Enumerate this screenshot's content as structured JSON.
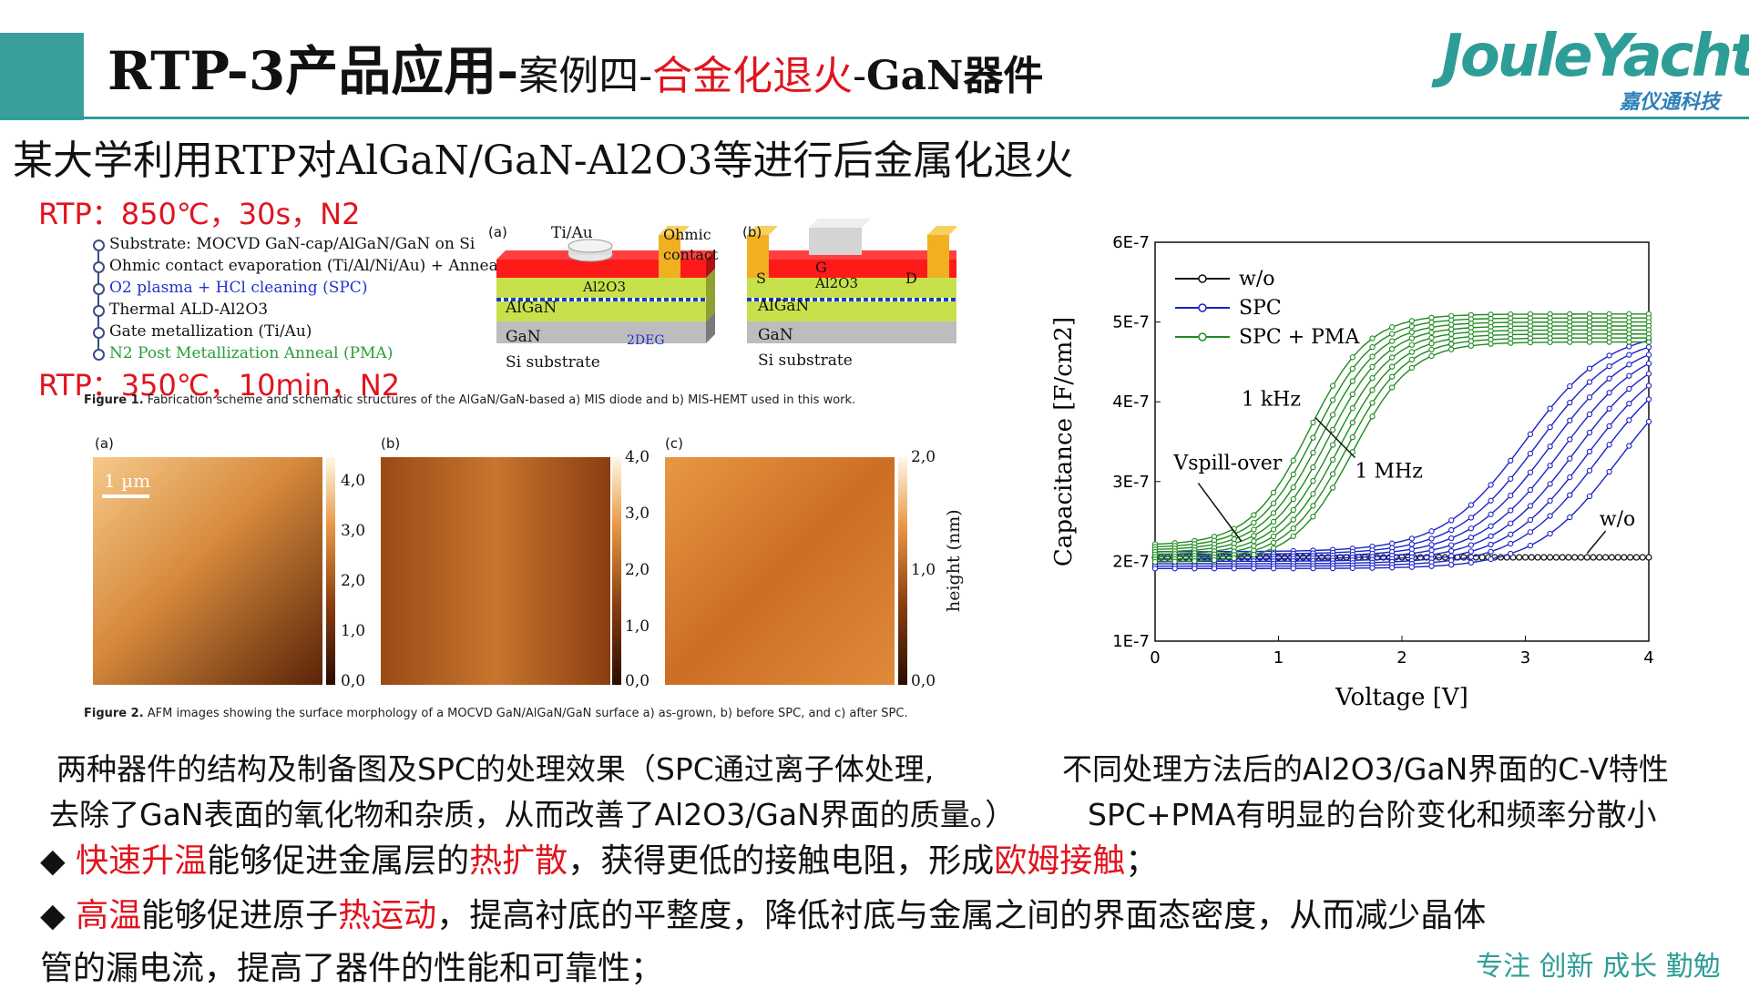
{
  "header": {
    "title_main": "RTP-3产品应用-",
    "title_case": "案例四-",
    "title_highlight": "合金化退火",
    "title_dash": "-",
    "title_device": "GaN器件",
    "logo_text": "JouleYacht",
    "logo_sub": "嘉仪通科技"
  },
  "subtitle": "某大学利用RTP对AlGaN/GaN-Al2O3等进行后金属化退火",
  "rtp1": "RTP：850℃，30s，N2",
  "rtp2": "RTP：350℃，10min，N2",
  "process_steps": [
    "Substrate: MOCVD GaN-cap/AlGaN/GaN on Si",
    "Ohmic contact evaporation (Ti/Al/Ni/Au) + Anneal",
    "O2 plasma + HCl cleaning (SPC)",
    "Thermal ALD-Al2O3",
    "Gate metallization (Ti/Au)",
    "N2 Post Metallization Anneal (PMA)"
  ],
  "fig1": {
    "label_a": "(a)",
    "label_b": "(b)",
    "tiau": "Ti/Au",
    "ohmic": "Ohmic",
    "contact": "contact",
    "al2o3": "Al2O3",
    "algan": "AlGaN",
    "gan": "GaN",
    "deg": "2DEG",
    "si": "Si substrate",
    "s": "S",
    "d": "D",
    "g": "G",
    "caption_bold": "Figure 1.",
    "caption": "Fabrication scheme and schematic structures of the AlGaN/GaN-based a) MIS diode and b) MIS-HEMT used in this work."
  },
  "fig2": {
    "label_a": "(a)",
    "label_b": "(b)",
    "label_c": "(c)",
    "scale": "1 µm",
    "cb_a": [
      "4,0",
      "3,0",
      "2,0",
      "1,0",
      "0,0"
    ],
    "cb_b": [
      "4,0",
      "3,0",
      "2,0",
      "1,0",
      "0,0"
    ],
    "cb_c": [
      "2,0",
      "1,0",
      "0,0"
    ],
    "height_label": "height (nm)",
    "caption_bold": "Figure 2.",
    "caption": "AFM images showing the surface morphology of a MOCVD GaN/AlGaN/GaN surface a) as-grown, b) before SPC, and c) after SPC."
  },
  "left_desc": [
    "两种器件的结构及制备图及SPC的处理效果（SPC通过离子体处理,",
    "去除了GaN表面的氧化物和杂质，从而改善了Al2O3/GaN界面的质量。）"
  ],
  "right_desc": [
    "不同处理方法后的Al2O3/GaN界面的C-V特性",
    "SPC+PMA有明显的台阶变化和频率分散小"
  ],
  "bullets": [
    {
      "pre": "",
      "hl1": "快速升温",
      "mid1": "能够促进金属层的",
      "hl2": "热扩散",
      "mid2": "，获得更低的接触电阻，形成",
      "hl3": "欧姆接触",
      "post": "；"
    },
    {
      "pre": "",
      "hl1": "高温",
      "mid1": "能够促进原子",
      "hl2": "热运动",
      "mid2": "，提高衬底的平整度，降低衬底与金属之间的界面态密度，从而减少晶体",
      "hl3": "",
      "post": ""
    }
  ],
  "bullet_cont": "管的漏电流，提高了器件的性能和可靠性；",
  "slogan": "专注 创新 成长 勤勉",
  "chart_data": {
    "type": "line",
    "xlabel": "Voltage [V]",
    "ylabel": "Capacitance [F/cm2]",
    "xlim": [
      0,
      4
    ],
    "ylim": [
      1e-07,
      6e-07
    ],
    "x_ticks": [
      "0",
      "1",
      "2",
      "3",
      "4"
    ],
    "y_ticks": [
      "1E-7",
      "2E-7",
      "3E-7",
      "4E-7",
      "5E-7",
      "6E-7"
    ],
    "legend": [
      "w/o",
      "SPC",
      "SPC + PMA"
    ],
    "annotations": [
      "1 kHz",
      "1 MHz",
      "Vspill-over",
      "w/o"
    ],
    "series": [
      {
        "name": "w/o",
        "color": "#111111",
        "x": [
          0,
          1,
          2,
          3,
          4
        ],
        "values": [
          2.05e-07,
          2.05e-07,
          2.05e-07,
          2.05e-07,
          2.05e-07
        ]
      },
      {
        "name": "SPC",
        "color": "#1a23c8",
        "midpoints": [
          3.0,
          3.1,
          3.2,
          3.3,
          3.4,
          3.5,
          3.6,
          3.75
        ],
        "low": 2.12e-07,
        "high": 4.9e-07
      },
      {
        "name": "SPC + PMA",
        "color": "#1f8a1f",
        "midpoints": [
          1.25,
          1.3,
          1.35,
          1.4,
          1.45,
          1.5,
          1.55,
          1.6
        ],
        "low": 2.2e-07,
        "high": 5.1e-07
      }
    ]
  }
}
